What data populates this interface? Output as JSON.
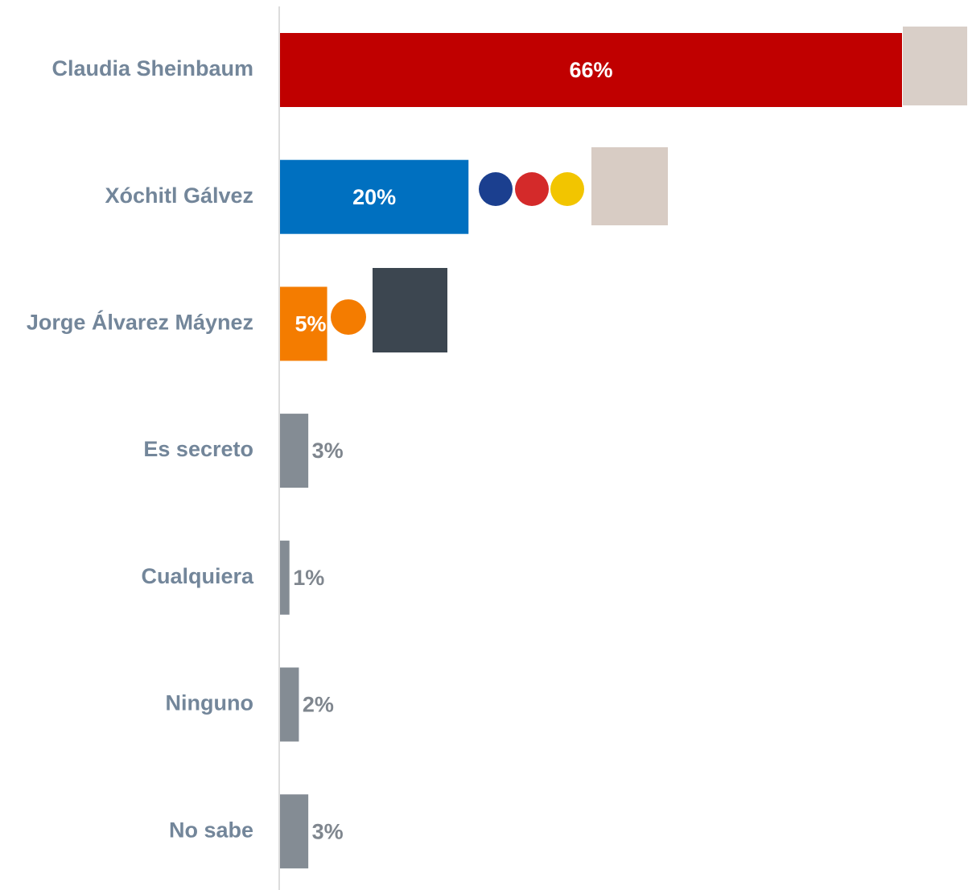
{
  "chart_data": {
    "type": "hbar",
    "categories": [
      "Claudia Sheinbaum",
      "Xóchitl Gálvez",
      "Jorge Álvarez Máynez",
      "Es secreto",
      "Cualquiera",
      "Ninguno",
      "No sabe"
    ],
    "values": [
      66,
      20,
      5,
      3,
      1,
      2,
      3
    ],
    "value_labels": [
      "66%",
      "20%",
      "5%",
      "3%",
      "1%",
      "2%",
      "3%"
    ],
    "colors": [
      "#c00000",
      "#0070c0",
      "#f47c00",
      "#848c94",
      "#848c94",
      "#848c94",
      "#848c94"
    ]
  }
}
